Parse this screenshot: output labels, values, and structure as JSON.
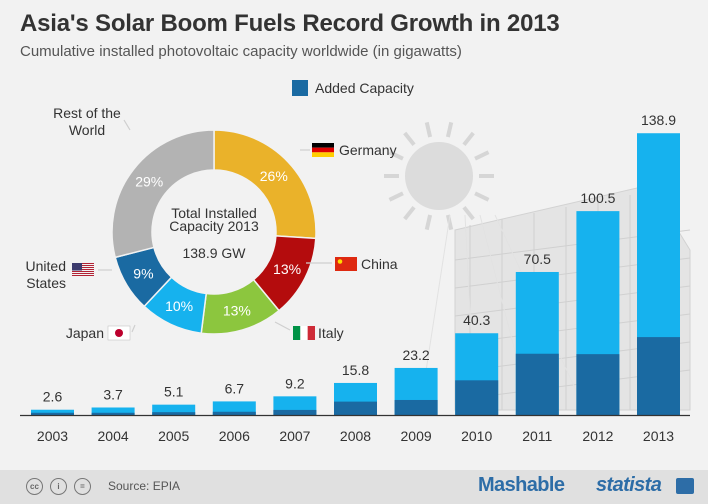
{
  "header": {
    "title": "Asia's Solar Boom Fuels Record Growth in 2013",
    "subtitle": "Cumulative installed photovoltaic capacity worldwide (in gigawatts)"
  },
  "legend": {
    "label": "Added Capacity",
    "color": "#1a6aa2"
  },
  "colors": {
    "bar_light": "#16b2ee",
    "bar_dark": "#1a6aa2",
    "axis": "#333333"
  },
  "chart_data": [
    {
      "type": "bar",
      "categories": [
        "2003",
        "2004",
        "2005",
        "2006",
        "2007",
        "2008",
        "2009",
        "2010",
        "2011",
        "2012",
        "2013"
      ],
      "series": [
        {
          "name": "Cumulative capacity",
          "values": [
            2.6,
            3.7,
            5.1,
            6.7,
            9.2,
            15.8,
            23.2,
            40.3,
            70.5,
            100.5,
            138.9
          ]
        },
        {
          "name": "Added Capacity",
          "values": [
            1.1,
            1.1,
            1.4,
            1.6,
            2.5,
            6.6,
            7.4,
            17.1,
            30.2,
            30.0,
            38.4
          ]
        }
      ],
      "data_labels": [
        "2.6",
        "3.7",
        "5.1",
        "6.7",
        "9.2",
        "15.8",
        "23.2",
        "40.3",
        "70.5",
        "100.5",
        "138.9"
      ],
      "ylim": [
        0,
        140
      ]
    },
    {
      "type": "pie",
      "donut": true,
      "center_text": [
        "Total Installed",
        "Capacity 2013",
        "138.9 GW"
      ],
      "slices": [
        {
          "label": "Germany",
          "value": 26,
          "pct_label": "26%",
          "color": "#eab22a",
          "flag": "de"
        },
        {
          "label": "China",
          "value": 13,
          "pct_label": "13%",
          "color": "#b40c0d",
          "flag": "cn"
        },
        {
          "label": "Italy",
          "value": 13,
          "pct_label": "13%",
          "color": "#8cc63e",
          "flag": "it"
        },
        {
          "label": "Japan",
          "value": 10,
          "pct_label": "10%",
          "color": "#16b2ee",
          "flag": "jp"
        },
        {
          "label": "United States",
          "value": 9,
          "pct_label": "9%",
          "color": "#1a6aa2",
          "flag": "us"
        },
        {
          "label": "Rest of the World",
          "value": 29,
          "pct_label": "29%",
          "color": "#b3b3b3",
          "flag": ""
        }
      ]
    }
  ],
  "footer": {
    "source": "Source: EPIA",
    "brand1": "Mashable",
    "brand2": "statista"
  }
}
